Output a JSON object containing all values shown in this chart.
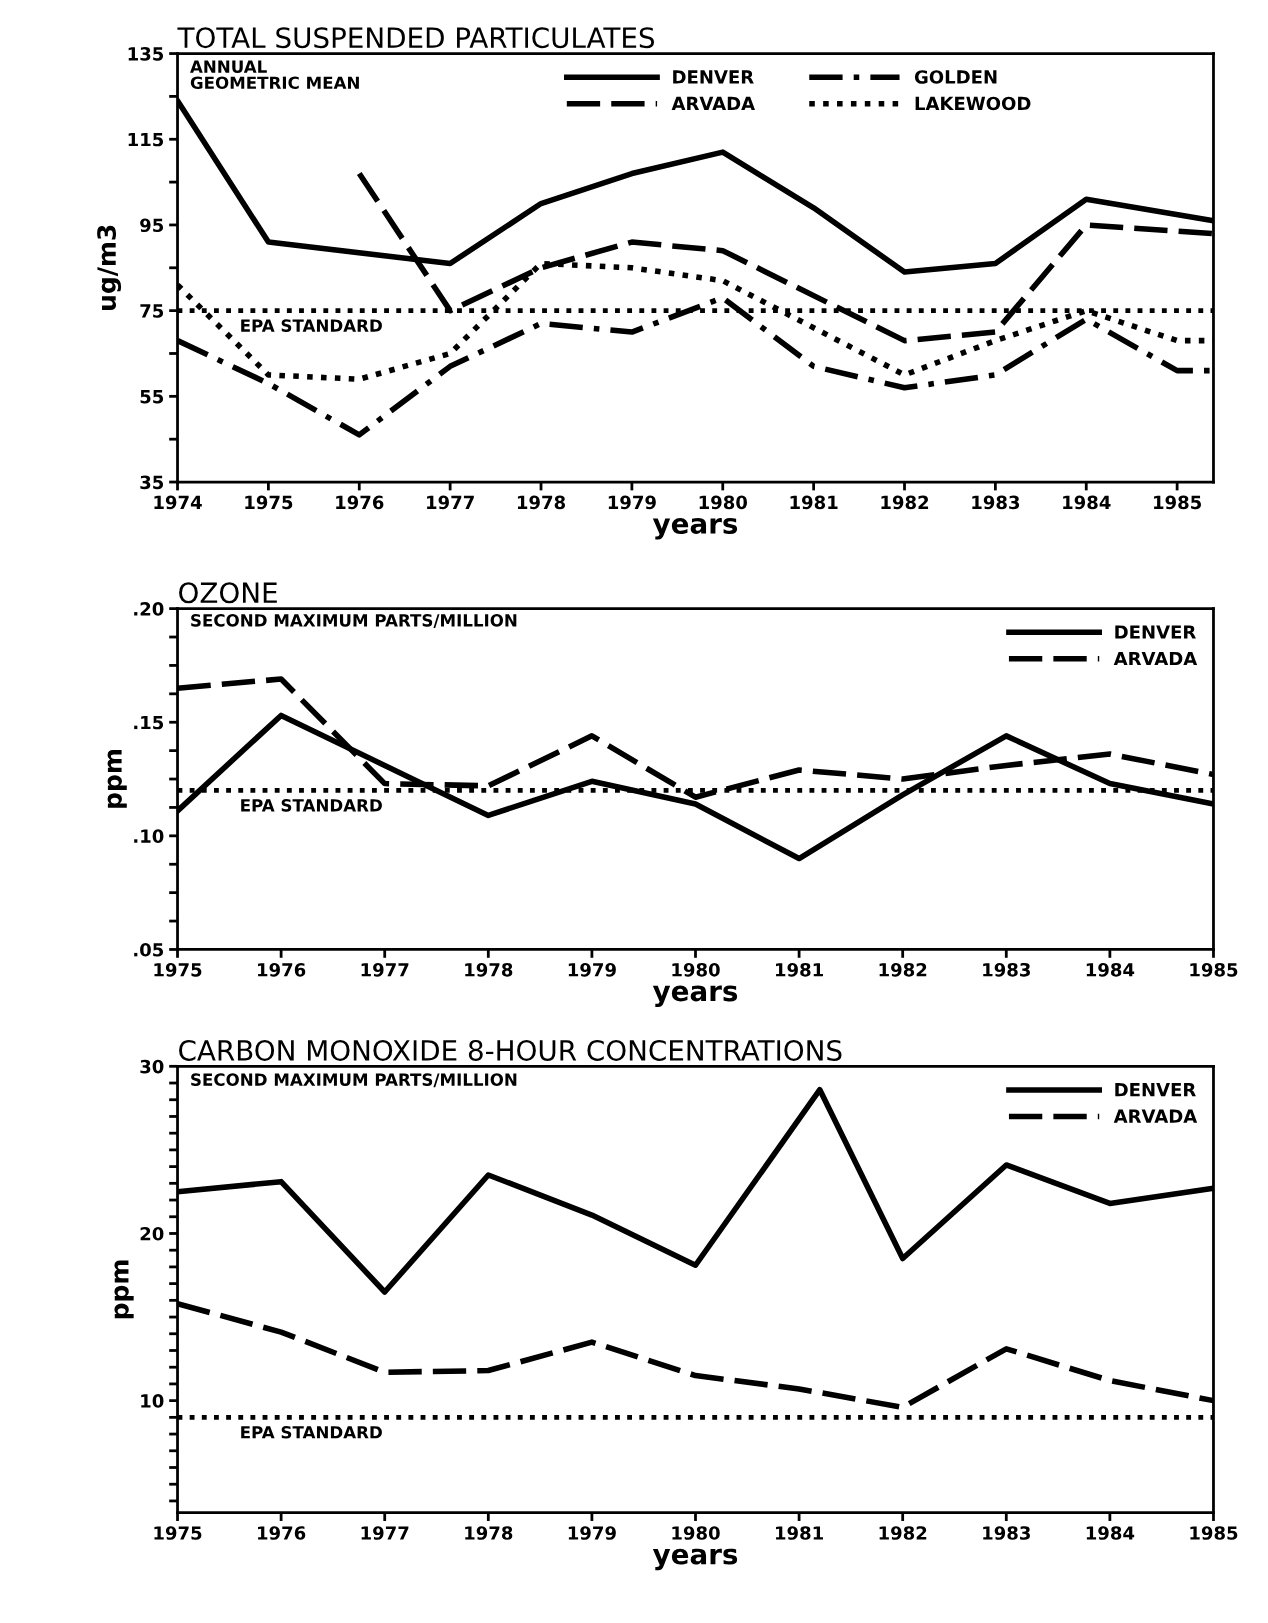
{
  "chart_data": [
    {
      "type": "line",
      "title": "TOTAL SUSPENDED PARTICULATES",
      "xlabel": "years",
      "ylabel": "ug/m3",
      "annotations": [
        "ANNUAL\nGEOMETRIC MEAN"
      ],
      "series": [
        {
          "name": "DENVER",
          "color": "#000000",
          "line_style": "solid",
          "x": [
            1974,
            1975,
            1977,
            1978,
            1979,
            1980,
            1981,
            1982,
            1983,
            1984,
            1985.4
          ],
          "values": [
            124,
            91,
            86,
            100,
            107,
            112,
            99,
            84,
            86,
            101,
            96
          ]
        },
        {
          "name": "ARVADA",
          "color": "#000000",
          "line_style": "dashed",
          "x": [
            1976,
            1977,
            1978,
            1979,
            1980,
            1982,
            1983,
            1984,
            1985.4
          ],
          "values": [
            107,
            75,
            85,
            91,
            89,
            68,
            70,
            95,
            93
          ]
        },
        {
          "name": "GOLDEN",
          "color": "#000000",
          "line_style": "dashdot",
          "x": [
            1974,
            1975,
            1976,
            1977,
            1978,
            1979,
            1980,
            1981,
            1982,
            1983,
            1984,
            1985,
            1985.4
          ],
          "values": [
            68,
            58,
            46,
            62,
            72,
            70,
            78,
            62,
            57,
            60,
            73,
            61,
            61
          ]
        },
        {
          "name": "LAKEWOOD",
          "color": "#000000",
          "line_style": "dotted",
          "x": [
            1974,
            1975,
            1976,
            1977,
            1978,
            1979,
            1980,
            1981,
            1982,
            1983,
            1984,
            1985,
            1985.4
          ],
          "values": [
            81,
            60,
            59,
            65,
            86,
            85,
            82,
            71,
            60,
            68,
            75,
            68,
            68
          ]
        }
      ],
      "ref_lines": [
        {
          "axis": "y",
          "value": 75,
          "label": "EPA STANDARD",
          "color": "#000000",
          "line_style": "dotted"
        }
      ],
      "xlim": [
        1974,
        1985.4
      ],
      "xticks": [
        1974,
        1975,
        1976,
        1977,
        1978,
        1979,
        1980,
        1981,
        1982,
        1983,
        1984,
        1985
      ],
      "ylim": [
        35,
        135
      ],
      "yticks": [
        35,
        {
          "value": 45,
          "label": null
        },
        55,
        {
          "value": 65,
          "label": null
        },
        75,
        {
          "value": 85,
          "label": null
        },
        95,
        {
          "value": 105,
          "label": null
        },
        115,
        {
          "value": 125,
          "label": null
        },
        135
      ],
      "grid": false,
      "legend": "top"
    },
    {
      "type": "line",
      "title": "OZONE",
      "xlabel": "years",
      "ylabel": "ppm",
      "annotations": [
        "SECOND MAXIMUM PARTS/MILLION"
      ],
      "series": [
        {
          "name": "DENVER",
          "color": "#000000",
          "line_style": "solid",
          "x": [
            1975,
            1976,
            1977,
            1978,
            1979,
            1980,
            1981,
            1982,
            1983,
            1984,
            1985
          ],
          "values": [
            0.111,
            0.153,
            0.131,
            0.109,
            0.124,
            0.114,
            0.09,
            0.118,
            0.144,
            0.123,
            0.114
          ]
        },
        {
          "name": "ARVADA",
          "color": "#000000",
          "line_style": "dashed",
          "x": [
            1975,
            1976,
            1977,
            1978,
            1979,
            1980,
            1981,
            1982,
            1983,
            1984,
            1985
          ],
          "values": [
            0.165,
            0.169,
            0.123,
            0.122,
            0.144,
            0.117,
            0.129,
            0.125,
            0.131,
            0.136,
            0.127
          ]
        }
      ],
      "ref_lines": [
        {
          "axis": "y",
          "value": 0.12,
          "label": "EPA STANDARD",
          "color": "#000000",
          "line_style": "dotted"
        }
      ],
      "xlim": [
        1975,
        1985
      ],
      "xticks": [
        1975,
        1976,
        1977,
        1978,
        1979,
        1980,
        1981,
        1982,
        1983,
        1984,
        1985
      ],
      "ylim": [
        0.05,
        0.2
      ],
      "yticks": [
        {
          "value": 0.05,
          "label": ".05"
        },
        {
          "value": 0.0625,
          "label": null
        },
        {
          "value": 0.075,
          "label": null
        },
        {
          "value": 0.0875,
          "label": null
        },
        {
          "value": 0.1,
          "label": ".10"
        },
        {
          "value": 0.1125,
          "label": null
        },
        {
          "value": 0.125,
          "label": null
        },
        {
          "value": 0.1375,
          "label": null
        },
        {
          "value": 0.15,
          "label": ".15"
        },
        {
          "value": 0.1625,
          "label": null
        },
        {
          "value": 0.175,
          "label": null
        },
        {
          "value": 0.1875,
          "label": null
        },
        {
          "value": 0.2,
          "label": ".20"
        }
      ],
      "grid": false,
      "legend": "top right"
    },
    {
      "type": "line",
      "title": "CARBON MONOXIDE 8-HOUR CONCENTRATIONS",
      "xlabel": "years",
      "ylabel": "ppm",
      "annotations": [
        "SECOND MAXIMUM PARTS/MILLION"
      ],
      "series": [
        {
          "name": "DENVER",
          "color": "#000000",
          "line_style": "solid",
          "x": [
            1975,
            1976,
            1977,
            1978,
            1979,
            1980,
            1981.2,
            1982,
            1983,
            1984,
            1985
          ],
          "values": [
            22.5,
            23.1,
            16.5,
            23.5,
            21.1,
            18.1,
            28.6,
            18.5,
            24.1,
            21.8,
            22.7
          ]
        },
        {
          "name": "ARVADA",
          "color": "#000000",
          "line_style": "dashed",
          "x": [
            1975,
            1976,
            1977,
            1978,
            1979,
            1980,
            1981,
            1982,
            1983,
            1984,
            1985
          ],
          "values": [
            15.8,
            14.1,
            11.7,
            11.8,
            13.5,
            11.5,
            10.7,
            9.6,
            13.1,
            11.2,
            10.0
          ]
        }
      ],
      "ref_lines": [
        {
          "axis": "y",
          "value": 9,
          "label": "EPA STANDARD",
          "color": "#000000",
          "line_style": "dotted"
        }
      ],
      "xlim": [
        1975,
        1985
      ],
      "xticks": [
        1975,
        1976,
        1977,
        1978,
        1979,
        1980,
        1981,
        1982,
        1983,
        1984,
        1985
      ],
      "ylim": [
        3.3,
        30
      ],
      "yticks": [
        {
          "value": 4,
          "label": null
        },
        {
          "value": 5,
          "label": null
        },
        {
          "value": 6,
          "label": null
        },
        {
          "value": 7,
          "label": null
        },
        {
          "value": 8,
          "label": null
        },
        {
          "value": 9,
          "label": null
        },
        10,
        {
          "value": 11,
          "label": null
        },
        {
          "value": 12,
          "label": null
        },
        {
          "value": 13,
          "label": null
        },
        {
          "value": 14,
          "label": null
        },
        {
          "value": 15,
          "label": null
        },
        {
          "value": 16,
          "label": null
        },
        {
          "value": 17,
          "label": null
        },
        {
          "value": 18,
          "label": null
        },
        {
          "value": 19,
          "label": null
        },
        20,
        {
          "value": 21,
          "label": null
        },
        {
          "value": 22,
          "label": null
        },
        {
          "value": 23,
          "label": null
        },
        {
          "value": 24,
          "label": null
        },
        {
          "value": 25,
          "label": null
        },
        {
          "value": 26,
          "label": null
        },
        {
          "value": 27,
          "label": null
        },
        {
          "value": 28,
          "label": null
        },
        {
          "value": 29,
          "label": null
        },
        30
      ],
      "grid": false,
      "legend": "top right"
    }
  ]
}
